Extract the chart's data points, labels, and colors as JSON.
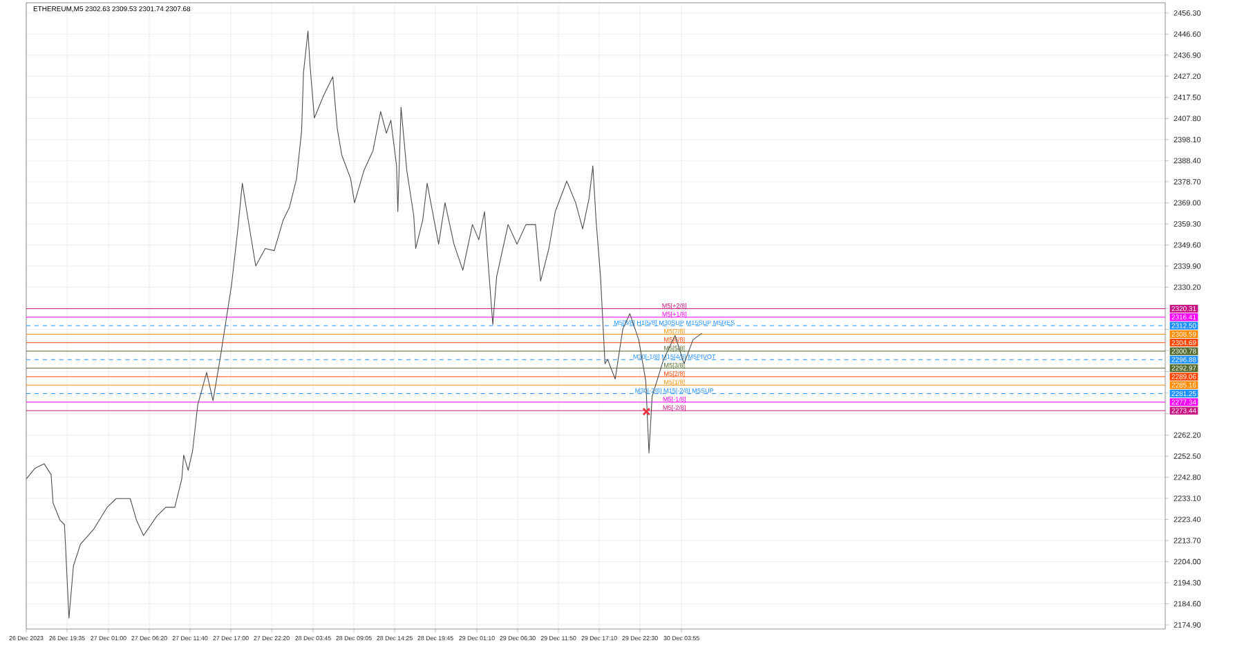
{
  "chart_data": {
    "type": "line",
    "title": "ETHEREUM,M5  2302.63 2309.53 2301.74 2307.68",
    "xlim": [
      "2023-12-26T14:15",
      "2024-01-01T19:10"
    ],
    "ylim": [
      2173,
      2461
    ],
    "xticks": [
      {
        "value": "2023-12-26T14:15",
        "label": "26 Dec 2023"
      },
      {
        "value": "2023-12-26T19:35",
        "label": "26 Dec 19:35"
      },
      {
        "value": "2023-12-27T01:00",
        "label": "27 Dec 01:00"
      },
      {
        "value": "2023-12-27T06:20",
        "label": "27 Dec 06:20"
      },
      {
        "value": "2023-12-27T11:40",
        "label": "27 Dec 11:40"
      },
      {
        "value": "2023-12-27T17:00",
        "label": "27 Dec 17:00"
      },
      {
        "value": "2023-12-27T22:20",
        "label": "27 Dec 22:20"
      },
      {
        "value": "2023-12-28T03:45",
        "label": "28 Dec 03:45"
      },
      {
        "value": "2023-12-28T09:05",
        "label": "28 Dec 09:05"
      },
      {
        "value": "2023-12-28T14:25",
        "label": "28 Dec 14:25"
      },
      {
        "value": "2023-12-28T19:45",
        "label": "28 Dec 19:45"
      },
      {
        "value": "2023-12-29T01:10",
        "label": "29 Dec 01:10"
      },
      {
        "value": "2023-12-29T06:30",
        "label": "29 Dec 06:30"
      },
      {
        "value": "2023-12-29T11:50",
        "label": "29 Dec 11:50"
      },
      {
        "value": "2023-12-29T17:10",
        "label": "29 Dec 17:10"
      },
      {
        "value": "2023-12-29T22:30",
        "label": "29 Dec 22:30"
      },
      {
        "value": "2023-12-30T03:55",
        "label": "30 Dec 03:55"
      }
    ],
    "yticks": [
      {
        "value": 2456.3,
        "label": "2456.30"
      },
      {
        "value": 2446.6,
        "label": "2446.60"
      },
      {
        "value": 2436.9,
        "label": "2436.90"
      },
      {
        "value": 2427.2,
        "label": "2427.20"
      },
      {
        "value": 2417.5,
        "label": "2417.50"
      },
      {
        "value": 2407.8,
        "label": "2407.80"
      },
      {
        "value": 2398.1,
        "label": "2398.10"
      },
      {
        "value": 2388.4,
        "label": "2388.40"
      },
      {
        "value": 2378.7,
        "label": "2378.70"
      },
      {
        "value": 2369.0,
        "label": "2369.00"
      },
      {
        "value": 2359.3,
        "label": "2359.30"
      },
      {
        "value": 2349.6,
        "label": "2349.60"
      },
      {
        "value": 2339.9,
        "label": "2339.90"
      },
      {
        "value": 2330.2,
        "label": "2330.20"
      },
      {
        "value": 2320.5,
        "label": null
      },
      {
        "value": 2310.8,
        "label": null
      },
      {
        "value": 2301.1,
        "label": null
      },
      {
        "value": 2291.4,
        "label": null
      },
      {
        "value": 2281.7,
        "label": null
      },
      {
        "value": 2272.0,
        "label": null
      },
      {
        "value": 2262.2,
        "label": "2262.20"
      },
      {
        "value": 2252.5,
        "label": "2252.50"
      },
      {
        "value": 2242.8,
        "label": "2242.80"
      },
      {
        "value": 2233.1,
        "label": "2233.10"
      },
      {
        "value": 2223.4,
        "label": "2223.40"
      },
      {
        "value": 2213.7,
        "label": "2213.70"
      },
      {
        "value": 2204.0,
        "label": "2204.00"
      },
      {
        "value": 2194.3,
        "label": "2194.30"
      },
      {
        "value": 2184.6,
        "label": "2184.60"
      },
      {
        "value": 2174.9,
        "label": "2174.90"
      }
    ],
    "grid": true,
    "annotations": [
      "2320.31",
      "2316.41",
      "2312.50",
      "2308.59",
      "2304.69",
      "2300.78",
      "2296.88",
      "2292.97",
      "2289.06",
      "2285.16",
      "2281.25",
      "2277.34",
      "2273.44"
    ],
    "series": [
      {
        "color": "#4d4d4d",
        "x": [
          "2023-12-26T14:15",
          "2023-12-26T15:25",
          "2023-12-26T16:35",
          "2023-12-26T17:30",
          "2023-12-26T17:45",
          "2023-12-26T18:40",
          "2023-12-26T19:15",
          "2023-12-26T19:50",
          "2023-12-26T20:25",
          "2023-12-26T21:20",
          "2023-12-26T23:05",
          "2023-12-27T00:50",
          "2023-12-27T02:00",
          "2023-12-27T03:50",
          "2023-12-27T04:40",
          "2023-12-27T05:35",
          "2023-12-27T07:20",
          "2023-12-27T08:30",
          "2023-12-27T09:40",
          "2023-12-27T10:35",
          "2023-12-27T10:50",
          "2023-12-27T11:25",
          "2023-12-27T12:00",
          "2023-12-27T12:40",
          "2023-12-27T13:50",
          "2023-12-27T14:40",
          "2023-12-27T15:35",
          "2023-12-27T16:25",
          "2023-12-27T17:05",
          "2023-12-27T17:55",
          "2023-12-27T18:30",
          "2023-12-27T19:05",
          "2023-12-27T20:15",
          "2023-12-27T21:30",
          "2023-12-27T22:40",
          "2023-12-27T23:50",
          "2023-12-28T00:40",
          "2023-12-28T01:35",
          "2023-12-28T02:15",
          "2023-12-28T02:30",
          "2023-12-28T03:05",
          "2023-12-28T03:20",
          "2023-12-28T03:55",
          "2023-12-28T05:05",
          "2023-12-28T06:20",
          "2023-12-28T06:55",
          "2023-12-28T07:30",
          "2023-12-28T08:40",
          "2023-12-28T09:10",
          "2023-12-28T10:25",
          "2023-12-28T11:35",
          "2023-12-28T12:35",
          "2023-12-28T13:20",
          "2023-12-28T13:55",
          "2023-12-28T14:40",
          "2023-12-28T14:50",
          "2023-12-28T15:15",
          "2023-12-28T16:00",
          "2023-12-28T16:55",
          "2023-12-28T17:10",
          "2023-12-28T18:05",
          "2023-12-28T18:40",
          "2023-12-28T20:10",
          "2023-12-28T21:00",
          "2023-12-28T22:10",
          "2023-12-28T23:20",
          "2023-12-29T00:35",
          "2023-12-29T01:25",
          "2023-12-29T02:10",
          "2023-12-29T02:35",
          "2023-12-29T03:15",
          "2023-12-29T03:45",
          "2023-12-29T05:15",
          "2023-12-29T06:25",
          "2023-12-29T07:35",
          "2023-12-29T08:50",
          "2023-12-29T09:30",
          "2023-12-29T10:35",
          "2023-12-29T11:25",
          "2023-12-29T12:55",
          "2023-12-29T14:05",
          "2023-12-29T15:00",
          "2023-12-29T15:50",
          "2023-12-29T16:20",
          "2023-12-29T16:45",
          "2023-12-29T17:20",
          "2023-12-29T17:55",
          "2023-12-29T18:15",
          "2023-12-29T19:15",
          "2023-12-29T20:15",
          "2023-12-29T21:10",
          "2023-12-29T22:20",
          "2023-12-29T23:15",
          "2023-12-29T23:40",
          "2023-12-30T00:05",
          "2023-12-30T01:35",
          "2023-12-30T03:05",
          "2023-12-30T04:15",
          "2023-12-30T05:25",
          "2023-12-30T06:35"
        ],
        "values": [
          2242,
          2247,
          2249,
          2244,
          2231,
          2223,
          2221,
          2178,
          2202,
          2212,
          2219,
          2229,
          2233,
          2233,
          2223,
          2216,
          2225,
          2229,
          2229,
          2242,
          2253,
          2246,
          2255,
          2276,
          2291,
          2278,
          2297,
          2316,
          2331,
          2357,
          2378,
          2365,
          2340,
          2348,
          2347,
          2361,
          2367,
          2380,
          2402,
          2429,
          2448,
          2433,
          2408,
          2418,
          2427,
          2403,
          2391,
          2380,
          2369,
          2384,
          2393,
          2411,
          2401,
          2407,
          2386,
          2365,
          2413,
          2384,
          2363,
          2348,
          2361,
          2378,
          2350,
          2369,
          2350,
          2338,
          2359,
          2352,
          2365,
          2344,
          2313,
          2335,
          2359,
          2350,
          2359,
          2359,
          2333,
          2348,
          2365,
          2379,
          2369,
          2357,
          2371,
          2386,
          2361,
          2335,
          2295,
          2297,
          2288,
          2311,
          2318,
          2306,
          2287,
          2254,
          2280,
          2297,
          2308,
          2295,
          2306,
          2309
        ]
      },
      {
        "type": "scatter",
        "marker": "cross",
        "color": "#e8323c",
        "x": [
          "2023-12-29T23:20"
        ],
        "values": [
          2273
        ]
      }
    ],
    "ref_lines": [
      {
        "axis": "y",
        "value": 2320.31,
        "label": "M5[+2/8]",
        "color": "#c71585",
        "line_style": "solid"
      },
      {
        "axis": "y",
        "value": 2316.41,
        "label": "M5[+1/8]",
        "color": "#ff00ff",
        "line_style": "solid"
      },
      {
        "axis": "y",
        "value": 2312.5,
        "label": "M5[8/8] H1[5/8] M30SUP M15SUP M5RES",
        "color": "#1e90ff",
        "line_style": "dashed"
      },
      {
        "axis": "y",
        "value": 2308.59,
        "label": "M5[7/8]",
        "color": "#ff8c00",
        "line_style": "solid"
      },
      {
        "axis": "y",
        "value": 2304.69,
        "label": "M5[6/8]",
        "color": "#ff4500",
        "line_style": "solid"
      },
      {
        "axis": "y",
        "value": 2300.78,
        "label": "M5[5/8]",
        "color": "#556b2f",
        "line_style": "solid"
      },
      {
        "axis": "y",
        "value": 2296.88,
        "label": "M30[-1/8] M15[4/8] M5PIVOT",
        "color": "#1e90ff",
        "line_style": "dashed"
      },
      {
        "axis": "y",
        "value": 2292.97,
        "label": "M5[3/8]",
        "color": "#556b2f",
        "line_style": "solid"
      },
      {
        "axis": "y",
        "value": 2289.06,
        "label": "M5[2/8]",
        "color": "#ff4500",
        "line_style": "solid"
      },
      {
        "axis": "y",
        "value": 2285.16,
        "label": "M5[1/8]",
        "color": "#ff8c00",
        "line_style": "solid"
      },
      {
        "axis": "y",
        "value": 2281.25,
        "label": "M30[-2/8] M15[-2/8] M5SUP",
        "color": "#1e90ff",
        "line_style": "dashed"
      },
      {
        "axis": "y",
        "value": 2277.34,
        "label": "M5[-1/8]",
        "color": "#ff00ff",
        "line_style": "solid"
      },
      {
        "axis": "y",
        "value": 2273.44,
        "label": "M5[-2/8]",
        "color": "#c71585",
        "line_style": "solid"
      }
    ]
  }
}
